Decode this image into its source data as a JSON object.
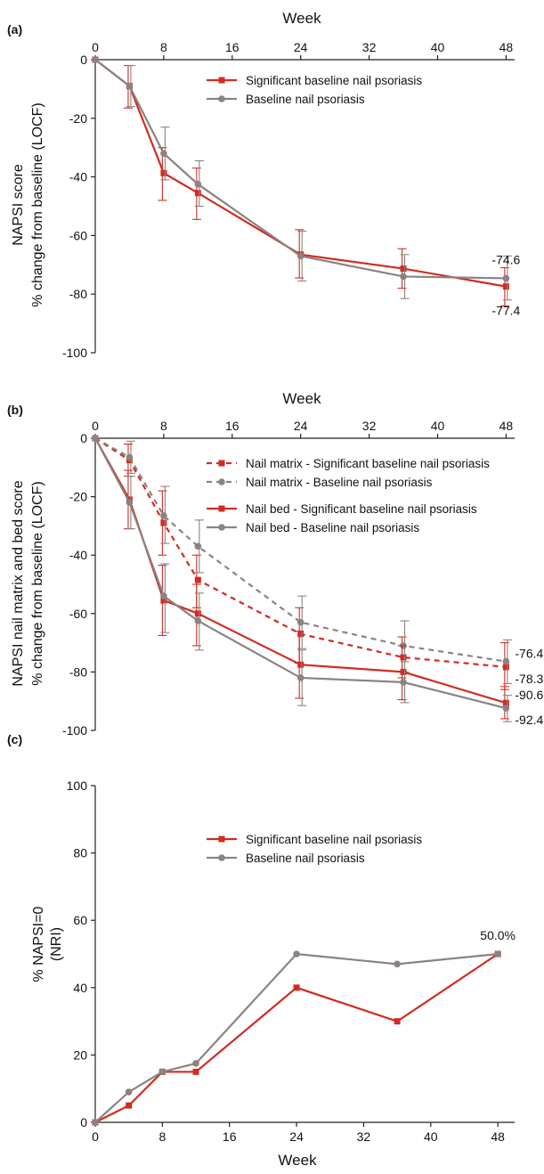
{
  "colors": {
    "significant": "#d22b22",
    "baseline": "#8b8380"
  },
  "chart_data": [
    {
      "type": "line",
      "panel_label": "(a)",
      "xlabel": "Week",
      "ylabel": "NAPSI score",
      "ylabel2": "% change from baseline (LOCF)",
      "xlim": [
        0,
        49
      ],
      "ylim": [
        -100,
        0
      ],
      "xticks": [
        "0",
        "8",
        "16",
        "24",
        "32",
        "40",
        "48"
      ],
      "yticks": [
        "0",
        "-20",
        "-40",
        "-60",
        "-80",
        "-100"
      ],
      "series": [
        {
          "name": "Significant baseline nail psoriasis",
          "color_key": "significant",
          "dashed": false,
          "marker": "square",
          "x": [
            0,
            4,
            8,
            12,
            24,
            36,
            48
          ],
          "y": [
            0,
            -9,
            -38.7,
            -45.5,
            -66.5,
            -71.3,
            -77.4
          ],
          "err_low": [
            0,
            -16.5,
            -48,
            -54.5,
            -74.5,
            -78,
            -84
          ],
          "err_high": [
            0,
            -2,
            -30,
            -37,
            -58,
            -64.5,
            -71
          ]
        },
        {
          "name": "Baseline nail psoriasis",
          "color_key": "baseline",
          "dashed": false,
          "marker": "circle",
          "x": [
            0,
            4,
            8,
            12,
            24,
            36,
            48
          ],
          "y": [
            0,
            -9,
            -32,
            -42.5,
            -67,
            -74,
            -74.6
          ],
          "err_low": [
            0,
            -16,
            -41,
            -50,
            -75.5,
            -81.5,
            -82
          ],
          "err_high": [
            0,
            -2,
            -23,
            -34.5,
            -58.5,
            -66.5,
            -67
          ]
        }
      ],
      "annotations": [
        {
          "text": "-74.6",
          "x": 48,
          "y": -74.6,
          "pos": "above"
        },
        {
          "text": "-77.4",
          "x": 48,
          "y": -77.4,
          "pos": "below"
        }
      ]
    },
    {
      "type": "line",
      "panel_label": "(b)",
      "xlabel": "Week",
      "ylabel": "NAPSI nail matrix and bed score",
      "ylabel2": "% change from baseline (LOCF)",
      "xlim": [
        0,
        49
      ],
      "ylim": [
        -100,
        0
      ],
      "xticks": [
        "0",
        "8",
        "16",
        "24",
        "32",
        "40",
        "48"
      ],
      "yticks": [
        "0",
        "-20",
        "-40",
        "-60",
        "-80",
        "-100"
      ],
      "series": [
        {
          "name": "Nail matrix - Significant baseline nail psoriasis",
          "color_key": "significant",
          "dashed": true,
          "marker": "square",
          "x": [
            0,
            4,
            8,
            12,
            24,
            36,
            48
          ],
          "y": [
            0,
            -7.5,
            -29,
            -48.5,
            -67,
            -75,
            -78.3
          ],
          "err_low": [
            0,
            -13,
            -40,
            -58,
            -77,
            -82,
            -86
          ],
          "err_high": [
            0,
            -2,
            -18,
            -40,
            -58,
            -68,
            -70
          ]
        },
        {
          "name": "Nail matrix - Baseline nail psoriasis",
          "color_key": "baseline",
          "dashed": true,
          "marker": "circle",
          "x": [
            0,
            4,
            8,
            12,
            24,
            36,
            48
          ],
          "y": [
            0,
            -6.5,
            -26.5,
            -37,
            -63,
            -71,
            -76.4
          ],
          "err_low": [
            0,
            -12,
            -36,
            -46,
            -72,
            -80,
            -84
          ],
          "err_high": [
            0,
            -1,
            -16.5,
            -28,
            -54,
            -62.5,
            -69
          ]
        },
        {
          "name": "Nail bed - Significant baseline nail psoriasis",
          "color_key": "significant",
          "dashed": false,
          "marker": "square",
          "x": [
            0,
            4,
            8,
            12,
            24,
            36,
            48
          ],
          "y": [
            0,
            -21,
            -55.5,
            -60,
            -77.5,
            -80,
            -90.6
          ],
          "err_low": [
            0,
            -31,
            -67.5,
            -71,
            -89,
            -89.5,
            -96
          ],
          "err_high": [
            0,
            -11,
            -43.5,
            -50,
            -66,
            -71,
            -85
          ]
        },
        {
          "name": "Nail bed - Baseline nail psoriasis",
          "color_key": "baseline",
          "dashed": false,
          "marker": "circle",
          "x": [
            0,
            4,
            8,
            12,
            24,
            36,
            48
          ],
          "y": [
            0,
            -22,
            -54,
            -62.5,
            -82,
            -83.5,
            -92.4
          ],
          "err_low": [
            0,
            -31,
            -66.5,
            -72.5,
            -91.5,
            -90.5,
            -97
          ],
          "err_high": [
            0,
            -13,
            -43,
            -53,
            -72.5,
            -76.5,
            -88
          ]
        }
      ],
      "annotations": [
        {
          "text": "-76.4",
          "x": 48,
          "y": -76.4,
          "pos": "right"
        },
        {
          "text": "-78.3",
          "x": 48,
          "y": -78.3,
          "pos": "right-below"
        },
        {
          "text": "-90.6",
          "x": 48,
          "y": -90.6,
          "pos": "right"
        },
        {
          "text": "-92.4",
          "x": 48,
          "y": -92.4,
          "pos": "right-below"
        }
      ]
    },
    {
      "type": "line",
      "panel_label": "(c)",
      "xlabel": "Week",
      "ylabel": "% NAPSI=0",
      "ylabel2": "(NRI)",
      "xlim": [
        0,
        50
      ],
      "ylim": [
        0,
        100
      ],
      "xticks": [
        "0",
        "8",
        "16",
        "24",
        "32",
        "40",
        "48"
      ],
      "yticks": [
        "0",
        "20",
        "40",
        "60",
        "80",
        "100"
      ],
      "series": [
        {
          "name": "Significant baseline nail psoriasis",
          "color_key": "significant",
          "dashed": false,
          "marker": "square",
          "x": [
            0,
            4,
            8,
            12,
            24,
            36,
            48
          ],
          "y": [
            0,
            5,
            15,
            15,
            40,
            30,
            50
          ]
        },
        {
          "name": "Baseline nail psoriasis",
          "color_key": "baseline",
          "dashed": false,
          "marker": "circle",
          "x": [
            0,
            4,
            8,
            12,
            24,
            36,
            48
          ],
          "y": [
            0,
            9,
            15,
            17.5,
            50,
            47,
            50
          ]
        }
      ],
      "annotations": [
        {
          "text": "50.0%",
          "x": 48,
          "y": 50,
          "pos": "above"
        }
      ]
    }
  ]
}
